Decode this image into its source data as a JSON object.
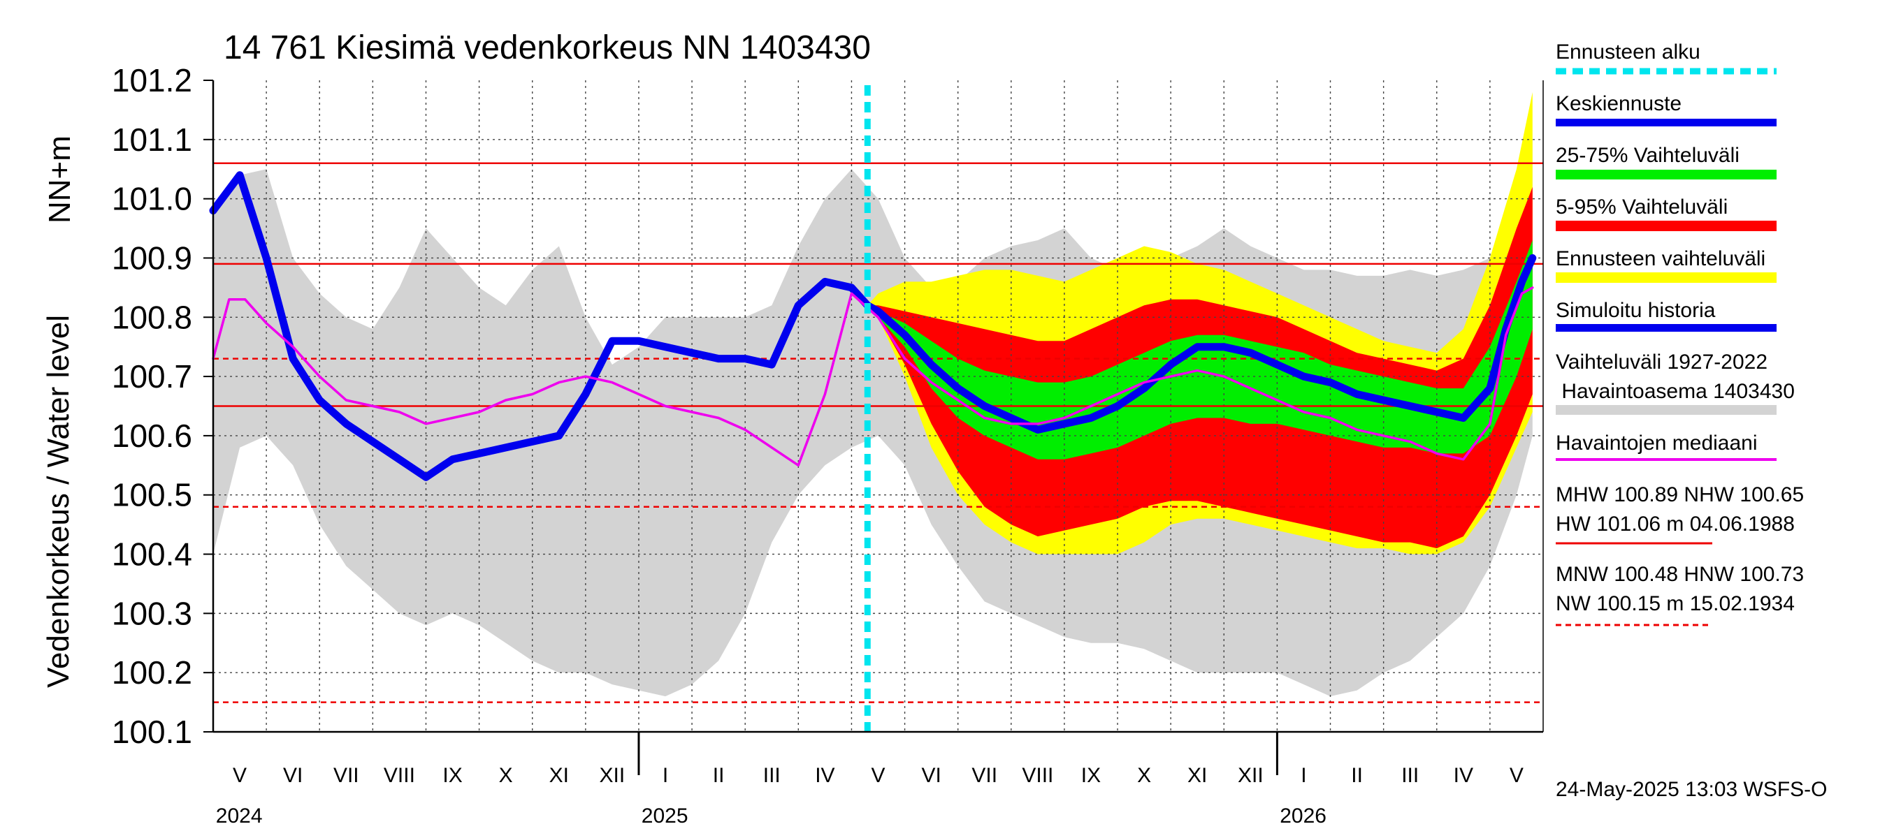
{
  "chart_data": {
    "type": "area",
    "title": "14 761 Kiesimä vedenkorkeus NN 1403430",
    "ylabel_top": "NN+m",
    "ylabel": "Vedenkorkeus / Water level",
    "ylim": [
      100.1,
      101.2
    ],
    "yticks": [
      "101.2",
      "101.1",
      "101.0",
      "100.9",
      "100.8",
      "100.7",
      "100.6",
      "100.5",
      "100.4",
      "100.3",
      "100.2",
      "100.1"
    ],
    "month_labels": [
      "V",
      "VI",
      "VII",
      "VIII",
      "IX",
      "X",
      "XI",
      "XII",
      "I",
      "II",
      "III",
      "IV",
      "V",
      "VI",
      "VII",
      "VIII",
      "IX",
      "X",
      "XI",
      "XII",
      "I",
      "II",
      "III",
      "IV",
      "V"
    ],
    "year_labels": [
      "2024",
      "2025",
      "2026"
    ],
    "forecast_start": "2025-05-24",
    "reference_lines": [
      {
        "name": "HW",
        "value": 101.06,
        "style": "solid"
      },
      {
        "name": "MHW",
        "value": 100.89,
        "style": "solid"
      },
      {
        "name": "HNW",
        "value": 100.73,
        "style": "dashed"
      },
      {
        "name": "NHW",
        "value": 100.65,
        "style": "solid"
      },
      {
        "name": "MNW",
        "value": 100.48,
        "style": "dashed"
      },
      {
        "name": "NW",
        "value": 100.15,
        "style": "dashed"
      }
    ],
    "series": [
      {
        "name": "Simuloitu historia",
        "color": "#0000ee",
        "x": [
          0,
          0.5,
          1,
          1.5,
          2,
          2.5,
          3,
          3.5,
          4,
          4.5,
          5,
          5.5,
          6,
          6.5,
          7,
          7.5,
          8,
          8.5,
          9,
          9.5,
          10,
          10.5,
          11,
          11.5,
          12,
          12.3
        ],
        "y": [
          100.98,
          101.04,
          100.9,
          100.73,
          100.66,
          100.62,
          100.59,
          100.56,
          100.53,
          100.56,
          100.57,
          100.58,
          100.59,
          100.6,
          100.67,
          100.76,
          100.76,
          100.75,
          100.74,
          100.73,
          100.73,
          100.72,
          100.82,
          100.86,
          100.85,
          100.82
        ]
      },
      {
        "name": "Keskiennuste",
        "color": "#0000ee",
        "x": [
          12.3,
          12.5,
          13,
          13.5,
          14,
          14.5,
          15,
          15.5,
          16,
          16.5,
          17,
          17.5,
          18,
          18.5,
          19,
          19.5,
          20,
          20.5,
          21,
          21.5,
          22,
          22.5,
          23,
          23.5,
          24,
          24.3,
          24.6,
          24.8
        ],
        "y": [
          100.82,
          100.81,
          100.77,
          100.72,
          100.68,
          100.65,
          100.63,
          100.61,
          100.62,
          100.63,
          100.65,
          100.68,
          100.72,
          100.75,
          100.75,
          100.74,
          100.72,
          100.7,
          100.69,
          100.67,
          100.66,
          100.65,
          100.64,
          100.63,
          100.68,
          100.78,
          100.86,
          100.9
        ]
      },
      {
        "name": "Havaintojen mediaani",
        "color": "#ee00ee",
        "x": [
          0,
          0.3,
          0.6,
          1,
          1.5,
          2,
          2.5,
          3,
          3.5,
          4,
          4.5,
          5,
          5.5,
          6,
          6.5,
          7,
          7.5,
          8,
          8.5,
          9,
          9.5,
          10,
          10.5,
          11,
          11.5,
          12,
          12.5,
          13,
          13.5,
          14,
          14.5,
          15,
          15.5,
          16,
          16.5,
          17,
          17.5,
          18,
          18.5,
          19,
          19.5,
          20,
          20.5,
          21,
          21.5,
          22,
          22.5,
          23,
          23.5,
          24,
          24.3,
          24.6,
          24.8
        ],
        "y": [
          100.73,
          100.83,
          100.83,
          100.79,
          100.75,
          100.7,
          100.66,
          100.65,
          100.64,
          100.62,
          100.63,
          100.64,
          100.66,
          100.67,
          100.69,
          100.7,
          100.69,
          100.67,
          100.65,
          100.64,
          100.63,
          100.61,
          100.58,
          100.55,
          100.67,
          100.84,
          100.8,
          100.73,
          100.69,
          100.66,
          100.63,
          100.62,
          100.62,
          100.63,
          100.65,
          100.67,
          100.69,
          100.7,
          100.71,
          100.7,
          100.68,
          100.66,
          100.64,
          100.63,
          100.61,
          100.6,
          100.59,
          100.57,
          100.56,
          100.62,
          100.77,
          100.84,
          100.85
        ]
      }
    ],
    "bands": [
      {
        "name": "Vaihteluväli 1927-2022 Havaintoasema 1403430",
        "color": "#d3d3d3",
        "x": [
          0,
          0.5,
          1,
          1.5,
          2,
          2.5,
          3,
          3.5,
          4,
          4.5,
          5,
          5.5,
          6,
          6.5,
          7,
          7.5,
          8,
          8.5,
          9,
          9.5,
          10,
          10.5,
          11,
          11.5,
          12,
          12.5,
          13,
          13.5,
          14,
          14.5,
          15,
          15.5,
          16,
          16.5,
          17,
          17.5,
          18,
          18.5,
          19,
          19.5,
          20,
          20.5,
          21,
          21.5,
          22,
          22.5,
          23,
          23.5,
          24,
          24.5,
          24.8
        ],
        "low": [
          100.4,
          100.58,
          100.6,
          100.55,
          100.45,
          100.38,
          100.34,
          100.3,
          100.28,
          100.3,
          100.28,
          100.25,
          100.22,
          100.2,
          100.2,
          100.18,
          100.17,
          100.16,
          100.18,
          100.22,
          100.3,
          100.42,
          100.5,
          100.55,
          100.58,
          100.6,
          100.55,
          100.45,
          100.38,
          100.32,
          100.3,
          100.28,
          100.26,
          100.25,
          100.25,
          100.24,
          100.22,
          100.2,
          100.2,
          100.2,
          100.2,
          100.18,
          100.16,
          100.17,
          100.2,
          100.22,
          100.26,
          100.3,
          100.38,
          100.5,
          100.6
        ],
        "high": [
          100.98,
          101.04,
          101.05,
          100.9,
          100.84,
          100.8,
          100.78,
          100.85,
          100.95,
          100.9,
          100.85,
          100.82,
          100.88,
          100.92,
          100.8,
          100.72,
          100.75,
          100.8,
          100.8,
          100.8,
          100.8,
          100.82,
          100.92,
          101.0,
          101.05,
          101.0,
          100.9,
          100.85,
          100.86,
          100.9,
          100.92,
          100.93,
          100.95,
          100.9,
          100.88,
          100.9,
          100.9,
          100.92,
          100.95,
          100.92,
          100.9,
          100.88,
          100.88,
          100.87,
          100.87,
          100.88,
          100.87,
          100.88,
          100.9,
          100.98,
          101.1
        ]
      },
      {
        "name": "Ennusteen vaihteluväli",
        "color": "#ffff00",
        "x": [
          12.3,
          12.5,
          13,
          13.5,
          14,
          14.5,
          15,
          15.5,
          16,
          16.5,
          17,
          17.5,
          18,
          18.5,
          19,
          19.5,
          20,
          20.5,
          21,
          21.5,
          22,
          22.5,
          23,
          23.5,
          24,
          24.5,
          24.8
        ],
        "low": [
          100.82,
          100.8,
          100.7,
          100.58,
          100.5,
          100.45,
          100.42,
          100.4,
          100.4,
          100.4,
          100.4,
          100.42,
          100.45,
          100.46,
          100.46,
          100.45,
          100.44,
          100.43,
          100.42,
          100.41,
          100.41,
          100.4,
          100.4,
          100.42,
          100.48,
          100.58,
          100.64
        ],
        "high": [
          100.82,
          100.84,
          100.86,
          100.86,
          100.87,
          100.88,
          100.88,
          100.87,
          100.86,
          100.88,
          100.9,
          100.92,
          100.91,
          100.89,
          100.88,
          100.86,
          100.84,
          100.82,
          100.8,
          100.78,
          100.76,
          100.75,
          100.74,
          100.78,
          100.9,
          101.05,
          101.18
        ]
      },
      {
        "name": "5-95% Vaihteluväli",
        "color": "#ff0000",
        "x": [
          12.3,
          12.5,
          13,
          13.5,
          14,
          14.5,
          15,
          15.5,
          16,
          16.5,
          17,
          17.5,
          18,
          18.5,
          19,
          19.5,
          20,
          20.5,
          21,
          21.5,
          22,
          22.5,
          23,
          23.5,
          24,
          24.5,
          24.8
        ],
        "low": [
          100.82,
          100.8,
          100.72,
          100.62,
          100.54,
          100.48,
          100.45,
          100.43,
          100.44,
          100.45,
          100.46,
          100.48,
          100.49,
          100.49,
          100.48,
          100.47,
          100.46,
          100.45,
          100.44,
          100.43,
          100.42,
          100.42,
          100.41,
          100.43,
          100.5,
          100.6,
          100.67
        ],
        "high": [
          100.82,
          100.82,
          100.81,
          100.8,
          100.79,
          100.78,
          100.77,
          100.76,
          100.76,
          100.78,
          100.8,
          100.82,
          100.83,
          100.83,
          100.82,
          100.81,
          100.8,
          100.78,
          100.76,
          100.74,
          100.73,
          100.72,
          100.71,
          100.73,
          100.82,
          100.95,
          101.02
        ]
      },
      {
        "name": "25-75% Vaihteluväli",
        "color": "#00ee00",
        "x": [
          12.3,
          12.5,
          13,
          13.5,
          14,
          14.5,
          15,
          15.5,
          16,
          16.5,
          17,
          17.5,
          18,
          18.5,
          19,
          19.5,
          20,
          20.5,
          21,
          21.5,
          22,
          22.5,
          23,
          23.5,
          24,
          24.5,
          24.8
        ],
        "low": [
          100.82,
          100.8,
          100.75,
          100.68,
          100.63,
          100.6,
          100.58,
          100.56,
          100.56,
          100.57,
          100.58,
          100.6,
          100.62,
          100.63,
          100.63,
          100.62,
          100.62,
          100.61,
          100.6,
          100.59,
          100.58,
          100.58,
          100.57,
          100.57,
          100.6,
          100.7,
          100.78
        ],
        "high": [
          100.82,
          100.81,
          100.79,
          100.76,
          100.73,
          100.71,
          100.7,
          100.69,
          100.69,
          100.7,
          100.72,
          100.74,
          100.76,
          100.77,
          100.77,
          100.76,
          100.75,
          100.74,
          100.72,
          100.71,
          100.7,
          100.69,
          100.68,
          100.68,
          100.75,
          100.86,
          100.93
        ]
      }
    ]
  },
  "legend": {
    "forecast_start": "Ennusteen alku",
    "mean_forecast": "Keskiennuste",
    "range_25_75": "25-75% Vaihteluväli",
    "range_5_95": "5-95% Vaihteluväli",
    "forecast_range": "Ennusteen vaihteluväli",
    "simulated_history": "Simuloitu historia",
    "hist_range_line1": "Vaihteluväli 1927-2022",
    "hist_range_line2": " Havaintoasema 1403430",
    "obs_median": "Havaintojen mediaani",
    "stats1_line1": "MHW 100.89 NHW 100.65",
    "stats1_line2": "HW 101.06 m 04.06.1988",
    "stats2_line1": "MNW 100.48 HNW 100.73",
    "stats2_line2": "NW 100.15 m 15.02.1934"
  },
  "footer": "24-May-2025 13:03 WSFS-O",
  "colors": {
    "forecast_start": "#00e5ee",
    "mean_forecast": "#0000ee",
    "range_25_75": "#00ee00",
    "range_5_95": "#ff0000",
    "forecast_range": "#ffff00",
    "simulated_history": "#0000ee",
    "hist_range": "#d3d3d3",
    "obs_median": "#ee00ee",
    "ref_lines": "#ee0000"
  }
}
